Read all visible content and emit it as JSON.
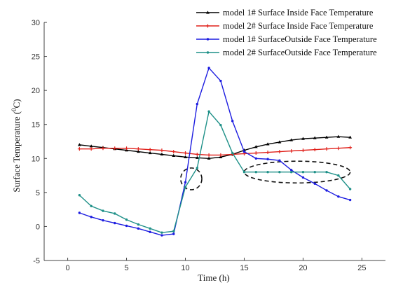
{
  "chart_data": {
    "type": "line",
    "xlabel": "Time (h)",
    "ylabel": "Surface Temperature (°C)",
    "ylabel_main": "Surface Temperature (",
    "ylabel_sup": "0",
    "ylabel_end": "C)",
    "xlim": [
      -2,
      27
    ],
    "ylim": [
      -5,
      30
    ],
    "xticks": [
      0,
      5,
      10,
      15,
      20,
      25
    ],
    "yticks": [
      -5,
      0,
      5,
      10,
      15,
      20,
      25,
      30
    ],
    "grid": false,
    "legend_position": "top-right",
    "series": [
      {
        "name": "model 1# Surface Inside Face Temperature",
        "color": "#000000",
        "marker": "triangle",
        "x": [
          1,
          2,
          3,
          4,
          5,
          6,
          7,
          8,
          9,
          10,
          11,
          12,
          13,
          14,
          15,
          16,
          17,
          18,
          19,
          20,
          21,
          22,
          23,
          24
        ],
        "y": [
          12.0,
          11.8,
          11.6,
          11.4,
          11.2,
          11.0,
          10.8,
          10.6,
          10.4,
          10.2,
          10.1,
          10.0,
          10.2,
          10.6,
          11.2,
          11.7,
          12.1,
          12.4,
          12.7,
          12.9,
          13.0,
          13.1,
          13.2,
          13.1
        ]
      },
      {
        "name": "model 2# Surface Inside Face Temperature",
        "color": "#e0201a",
        "marker": "plus",
        "x": [
          1,
          2,
          3,
          4,
          5,
          6,
          7,
          8,
          9,
          10,
          11,
          12,
          13,
          14,
          15,
          16,
          17,
          18,
          19,
          20,
          21,
          22,
          23,
          24
        ],
        "y": [
          11.4,
          11.4,
          11.5,
          11.5,
          11.5,
          11.4,
          11.3,
          11.2,
          11.0,
          10.8,
          10.6,
          10.5,
          10.5,
          10.6,
          10.7,
          10.8,
          10.9,
          11.0,
          11.1,
          11.2,
          11.3,
          11.4,
          11.5,
          11.6
        ]
      },
      {
        "name": "model 1# SurfaceOutside Face Temperature",
        "color": "#1c1ce0",
        "marker": "dot",
        "x": [
          1,
          2,
          3,
          4,
          5,
          6,
          7,
          8,
          9,
          10,
          11,
          12,
          13,
          14,
          15,
          16,
          17,
          18,
          19,
          20,
          21,
          22,
          23,
          24
        ],
        "y": [
          2.0,
          1.4,
          0.9,
          0.5,
          0.1,
          -0.3,
          -0.8,
          -1.3,
          -1.1,
          6.5,
          18.0,
          23.3,
          21.4,
          15.5,
          11.0,
          10.0,
          9.9,
          9.7,
          8.3,
          7.2,
          6.3,
          5.3,
          4.4,
          3.9
        ]
      },
      {
        "name": "model 2# SurfaceOutside Face Temperature",
        "color": "#1e9088",
        "marker": "dot",
        "x": [
          1,
          2,
          3,
          4,
          5,
          6,
          7,
          8,
          9,
          10,
          11,
          12,
          13,
          14,
          15,
          16,
          17,
          18,
          19,
          20,
          21,
          22,
          23,
          24
        ],
        "y": [
          4.6,
          3.0,
          2.3,
          1.9,
          1.0,
          0.3,
          -0.3,
          -0.9,
          -0.7,
          5.8,
          8.6,
          16.9,
          14.9,
          10.8,
          8.0,
          8.0,
          8.0,
          8.0,
          8.0,
          8.0,
          8.0,
          8.0,
          7.5,
          5.5
        ]
      }
    ],
    "annotations": [
      {
        "shape": "dashed-ellipse",
        "center": [
          10.5,
          7.0
        ],
        "radius_x": 0.9,
        "radius_y": 1.6
      },
      {
        "shape": "dashed-ellipse",
        "center": [
          19.5,
          8.0
        ],
        "radius_x": 4.5,
        "radius_y": 1.6
      }
    ]
  }
}
